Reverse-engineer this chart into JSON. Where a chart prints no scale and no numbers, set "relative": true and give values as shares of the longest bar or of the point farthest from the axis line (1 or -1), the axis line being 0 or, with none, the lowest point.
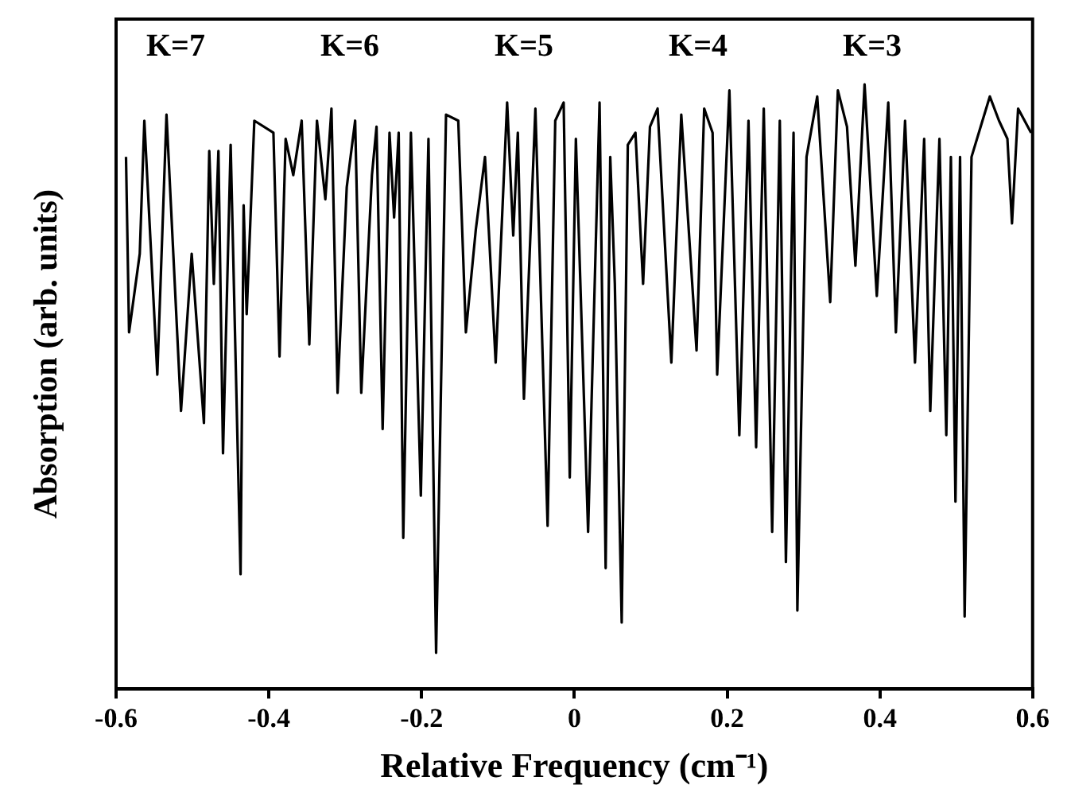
{
  "chart_data": {
    "type": "line",
    "xlabel": "Relative Frequency (cm⁻¹)",
    "ylabel": "Absorption (arb. units)",
    "relative": true,
    "xlim": [
      -0.6,
      0.6
    ],
    "xticks": [
      -0.6,
      -0.4,
      -0.2,
      0,
      0.2,
      0.4,
      0.6
    ],
    "grid": false,
    "legend": false,
    "marker": "none",
    "line_style": "solid",
    "annotations": [
      "K=7",
      "K=6",
      "K=5",
      "K=4",
      "K=3"
    ],
    "series": [
      {
        "color": "#000000",
        "x": [
          -0.587,
          -0.583,
          -0.569,
          -0.563,
          -0.546,
          -0.534,
          -0.515,
          -0.501,
          -0.485,
          -0.478,
          -0.472,
          -0.466,
          -0.46,
          -0.45,
          -0.437,
          -0.433,
          -0.429,
          -0.419,
          -0.394,
          -0.386,
          -0.378,
          -0.368,
          -0.357,
          -0.347,
          -0.337,
          -0.326,
          -0.318,
          -0.31,
          -0.298,
          -0.287,
          -0.279,
          -0.265,
          -0.259,
          -0.251,
          -0.242,
          -0.236,
          -0.23,
          -0.224,
          -0.214,
          -0.201,
          -0.191,
          -0.181,
          -0.168,
          -0.152,
          -0.142,
          -0.129,
          -0.117,
          -0.103,
          -0.088,
          -0.08,
          -0.074,
          -0.066,
          -0.051,
          -0.035,
          -0.025,
          -0.014,
          -0.006,
          0.002,
          0.018,
          0.033,
          0.041,
          0.047,
          0.053,
          0.062,
          0.07,
          0.08,
          0.09,
          0.099,
          0.109,
          0.127,
          0.14,
          0.16,
          0.17,
          0.181,
          0.187,
          0.203,
          0.216,
          0.228,
          0.238,
          0.248,
          0.259,
          0.269,
          0.277,
          0.287,
          0.292,
          0.304,
          0.318,
          0.335,
          0.345,
          0.357,
          0.368,
          0.38,
          0.396,
          0.411,
          0.421,
          0.433,
          0.446,
          0.458,
          0.466,
          0.478,
          0.487,
          0.493,
          0.499,
          0.505,
          0.511,
          0.52,
          0.532,
          0.544,
          0.556,
          0.567,
          0.573,
          0.581,
          0.598
        ],
        "values": [
          0.88,
          0.59,
          0.72,
          0.94,
          0.52,
          0.95,
          0.46,
          0.72,
          0.44,
          0.89,
          0.67,
          0.89,
          0.39,
          0.9,
          0.19,
          0.8,
          0.62,
          0.94,
          0.92,
          0.55,
          0.91,
          0.85,
          0.94,
          0.57,
          0.94,
          0.81,
          0.96,
          0.49,
          0.83,
          0.94,
          0.49,
          0.85,
          0.93,
          0.43,
          0.92,
          0.78,
          0.92,
          0.25,
          0.92,
          0.32,
          0.91,
          0.06,
          0.95,
          0.94,
          0.59,
          0.76,
          0.88,
          0.54,
          0.97,
          0.75,
          0.92,
          0.48,
          0.96,
          0.27,
          0.94,
          0.97,
          0.35,
          0.91,
          0.26,
          0.97,
          0.2,
          0.88,
          0.67,
          0.11,
          0.9,
          0.92,
          0.67,
          0.93,
          0.96,
          0.54,
          0.95,
          0.56,
          0.96,
          0.92,
          0.52,
          0.99,
          0.42,
          0.94,
          0.4,
          0.96,
          0.26,
          0.94,
          0.21,
          0.92,
          0.13,
          0.88,
          0.98,
          0.64,
          0.99,
          0.93,
          0.7,
          1.0,
          0.65,
          0.97,
          0.59,
          0.94,
          0.54,
          0.91,
          0.46,
          0.91,
          0.42,
          0.88,
          0.31,
          0.88,
          0.12,
          0.88,
          0.93,
          0.98,
          0.94,
          0.91,
          0.77,
          0.96,
          0.92
        ]
      }
    ]
  }
}
